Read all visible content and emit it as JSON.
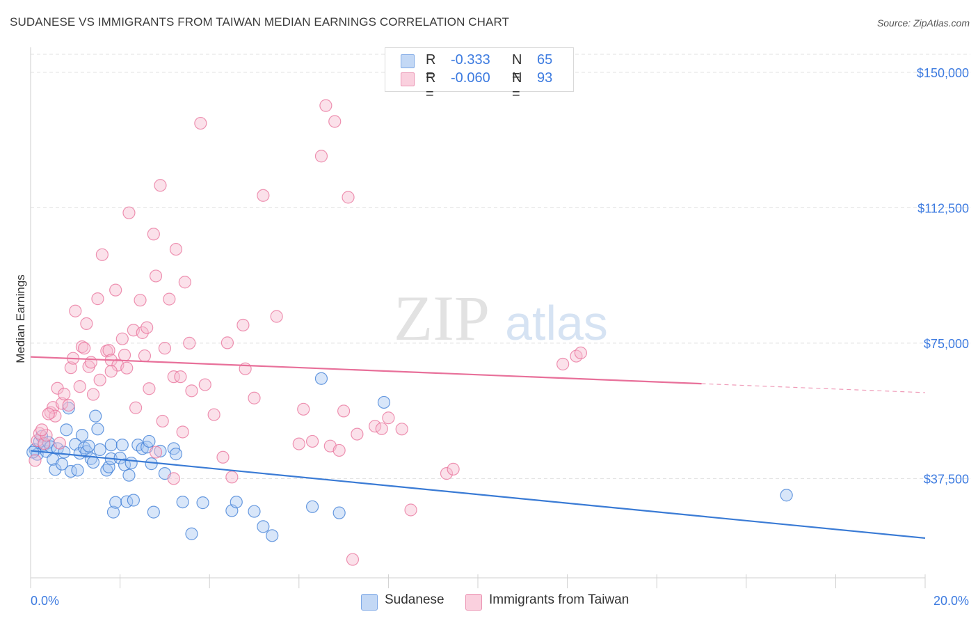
{
  "title": "SUDANESE VS IMMIGRANTS FROM TAIWAN MEDIAN EARNINGS CORRELATION CHART",
  "source": "Source: ZipAtlas.com",
  "watermark": {
    "zip": "ZIP",
    "atlas": "atlas"
  },
  "legend": {
    "rows": [
      {
        "r_label": "R =",
        "r_value": "-0.333",
        "n_label": "N =",
        "n_value": "65",
        "color": "#a9c8f2"
      },
      {
        "r_label": "R =",
        "r_value": "-0.060",
        "n_label": "N =",
        "n_value": "93",
        "color": "#f7bcd0"
      }
    ]
  },
  "bottom_legend": {
    "items": [
      {
        "label": "Sudanese",
        "color": "#a9c8f2"
      },
      {
        "label": "Immigrants from Taiwan",
        "color": "#f7bcd0"
      }
    ]
  },
  "chart_data": {
    "type": "scatter",
    "title": "SUDANESE VS IMMIGRANTS FROM TAIWAN MEDIAN EARNINGS CORRELATION CHART",
    "xlabel": "",
    "ylabel": "Median Earnings",
    "xlim": [
      0,
      20
    ],
    "ylim": [
      10000,
      155000
    ],
    "x_tick_labels": [
      "0.0%",
      "20.0%"
    ],
    "y_ticks": [
      37500,
      75000,
      112500,
      150000
    ],
    "y_tick_labels": [
      "$37,500",
      "$75,000",
      "$112,500",
      "$150,000"
    ],
    "grid": true,
    "legend_position": "top-center",
    "series": [
      {
        "name": "Sudanese",
        "color": "#3a7bd5",
        "fill": "#a9c8f2",
        "trend": {
          "x": [
            0,
            20
          ],
          "y": [
            45200,
            21000
          ],
          "solid_until": 20
        },
        "points": [
          [
            0.1,
            45500
          ],
          [
            0.15,
            44200
          ],
          [
            0.2,
            47800
          ],
          [
            0.25,
            49200
          ],
          [
            0.3,
            46800
          ],
          [
            0.35,
            45000
          ],
          [
            0.4,
            47500
          ],
          [
            0.45,
            46300
          ],
          [
            0.5,
            42800
          ],
          [
            0.55,
            40000
          ],
          [
            0.6,
            45800
          ],
          [
            0.7,
            41500
          ],
          [
            0.75,
            44800
          ],
          [
            0.8,
            51000
          ],
          [
            0.85,
            57000
          ],
          [
            0.9,
            39500
          ],
          [
            1.0,
            47000
          ],
          [
            1.05,
            39800
          ],
          [
            1.1,
            44500
          ],
          [
            1.15,
            49500
          ],
          [
            1.2,
            46000
          ],
          [
            1.25,
            45000
          ],
          [
            1.3,
            46500
          ],
          [
            1.35,
            43000
          ],
          [
            1.4,
            42000
          ],
          [
            1.45,
            54800
          ],
          [
            1.5,
            51200
          ],
          [
            1.55,
            45500
          ],
          [
            1.7,
            39800
          ],
          [
            1.75,
            40700
          ],
          [
            1.8,
            46800
          ],
          [
            1.8,
            43000
          ],
          [
            1.85,
            28200
          ],
          [
            1.9,
            30900
          ],
          [
            2.0,
            43200
          ],
          [
            2.05,
            46800
          ],
          [
            2.1,
            41300
          ],
          [
            2.15,
            31100
          ],
          [
            2.2,
            38400
          ],
          [
            2.25,
            41800
          ],
          [
            2.3,
            31500
          ],
          [
            2.4,
            46800
          ],
          [
            2.5,
            45800
          ],
          [
            2.6,
            46200
          ],
          [
            2.65,
            47800
          ],
          [
            2.7,
            41600
          ],
          [
            2.75,
            28200
          ],
          [
            2.9,
            45100
          ],
          [
            3.0,
            38900
          ],
          [
            3.2,
            45800
          ],
          [
            3.25,
            44300
          ],
          [
            3.4,
            31000
          ],
          [
            3.6,
            22200
          ],
          [
            3.85,
            30800
          ],
          [
            4.5,
            28600
          ],
          [
            4.6,
            31000
          ],
          [
            5.0,
            28400
          ],
          [
            5.2,
            24200
          ],
          [
            5.4,
            21700
          ],
          [
            6.3,
            29700
          ],
          [
            6.5,
            65200
          ],
          [
            6.9,
            28000
          ],
          [
            7.9,
            58600
          ],
          [
            16.9,
            32900
          ],
          [
            0.05,
            44800
          ]
        ]
      },
      {
        "name": "Immigrants from Taiwan",
        "color": "#e8709a",
        "fill": "#f7bcd0",
        "trend": {
          "x": [
            0,
            20
          ],
          "y": [
            71200,
            61300
          ],
          "solid_until": 15
        },
        "points": [
          [
            0.1,
            42500
          ],
          [
            0.15,
            48000
          ],
          [
            0.2,
            50000
          ],
          [
            0.3,
            47200
          ],
          [
            0.35,
            49500
          ],
          [
            0.45,
            55800
          ],
          [
            0.5,
            57200
          ],
          [
            0.55,
            54800
          ],
          [
            0.6,
            62500
          ],
          [
            0.7,
            58300
          ],
          [
            0.75,
            60900
          ],
          [
            0.85,
            57800
          ],
          [
            0.9,
            68200
          ],
          [
            0.95,
            70800
          ],
          [
            1.0,
            83900
          ],
          [
            1.1,
            63000
          ],
          [
            1.15,
            74000
          ],
          [
            1.2,
            73600
          ],
          [
            1.25,
            80400
          ],
          [
            1.3,
            68500
          ],
          [
            1.35,
            69700
          ],
          [
            1.4,
            60800
          ],
          [
            1.5,
            87300
          ],
          [
            1.55,
            64800
          ],
          [
            1.6,
            99500
          ],
          [
            1.7,
            72800
          ],
          [
            1.75,
            73000
          ],
          [
            1.8,
            70300
          ],
          [
            1.9,
            89700
          ],
          [
            1.95,
            68900
          ],
          [
            2.05,
            76200
          ],
          [
            2.1,
            71700
          ],
          [
            2.15,
            68100
          ],
          [
            2.2,
            111100
          ],
          [
            2.3,
            78600
          ],
          [
            2.35,
            57100
          ],
          [
            2.45,
            86900
          ],
          [
            2.5,
            77900
          ],
          [
            2.55,
            71500
          ],
          [
            2.6,
            79300
          ],
          [
            2.65,
            62400
          ],
          [
            2.75,
            105200
          ],
          [
            2.8,
            93600
          ],
          [
            2.9,
            118700
          ],
          [
            2.95,
            53400
          ],
          [
            3.0,
            73600
          ],
          [
            3.1,
            87200
          ],
          [
            3.2,
            65700
          ],
          [
            3.25,
            101000
          ],
          [
            3.35,
            65700
          ],
          [
            3.4,
            50400
          ],
          [
            3.45,
            91900
          ],
          [
            3.55,
            75000
          ],
          [
            3.6,
            61800
          ],
          [
            3.8,
            135900
          ],
          [
            3.9,
            63500
          ],
          [
            4.1,
            55200
          ],
          [
            4.3,
            43400
          ],
          [
            4.4,
            75100
          ],
          [
            4.5,
            37900
          ],
          [
            4.75,
            80000
          ],
          [
            4.8,
            67900
          ],
          [
            5.0,
            59800
          ],
          [
            5.2,
            115900
          ],
          [
            5.5,
            82400
          ],
          [
            6.0,
            47100
          ],
          [
            6.1,
            56700
          ],
          [
            6.3,
            47800
          ],
          [
            6.5,
            126800
          ],
          [
            6.6,
            140800
          ],
          [
            6.7,
            46500
          ],
          [
            6.8,
            136400
          ],
          [
            6.9,
            45300
          ],
          [
            7.0,
            56200
          ],
          [
            7.1,
            115400
          ],
          [
            7.3,
            49800
          ],
          [
            7.7,
            52000
          ],
          [
            7.85,
            51300
          ],
          [
            8.0,
            54300
          ],
          [
            8.3,
            51200
          ],
          [
            8.5,
            28800
          ],
          [
            9.3,
            38900
          ],
          [
            9.45,
            40100
          ],
          [
            11.9,
            69200
          ],
          [
            12.2,
            71400
          ],
          [
            12.3,
            72300
          ],
          [
            7.2,
            15100
          ],
          [
            3.2,
            37500
          ],
          [
            2.8,
            44800
          ],
          [
            1.8,
            67200
          ],
          [
            0.25,
            51000
          ],
          [
            0.4,
            55400
          ],
          [
            0.65,
            47300
          ]
        ]
      }
    ]
  }
}
